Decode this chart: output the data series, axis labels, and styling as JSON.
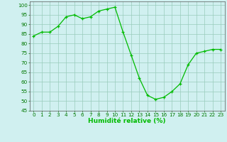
{
  "x": [
    0,
    1,
    2,
    3,
    4,
    5,
    6,
    7,
    8,
    9,
    10,
    11,
    12,
    13,
    14,
    15,
    16,
    17,
    18,
    19,
    20,
    21,
    22,
    23
  ],
  "y": [
    84,
    86,
    86,
    89,
    94,
    95,
    93,
    94,
    97,
    98,
    99,
    86,
    74,
    62,
    53,
    51,
    52,
    55,
    59,
    69,
    75,
    76,
    77,
    77
  ],
  "xlim": [
    -0.5,
    23.5
  ],
  "ylim": [
    45,
    102
  ],
  "yticks": [
    45,
    50,
    55,
    60,
    65,
    70,
    75,
    80,
    85,
    90,
    95,
    100
  ],
  "xticks": [
    0,
    1,
    2,
    3,
    4,
    5,
    6,
    7,
    8,
    9,
    10,
    11,
    12,
    13,
    14,
    15,
    16,
    17,
    18,
    19,
    20,
    21,
    22,
    23
  ],
  "xlabel": "Humidité relative (%)",
  "line_color": "#00bb00",
  "marker_color": "#00bb00",
  "bg_color": "#d0f0f0",
  "grid_color": "#99ccbb",
  "xlabel_fontsize": 6.5,
  "tick_fontsize": 5.2
}
